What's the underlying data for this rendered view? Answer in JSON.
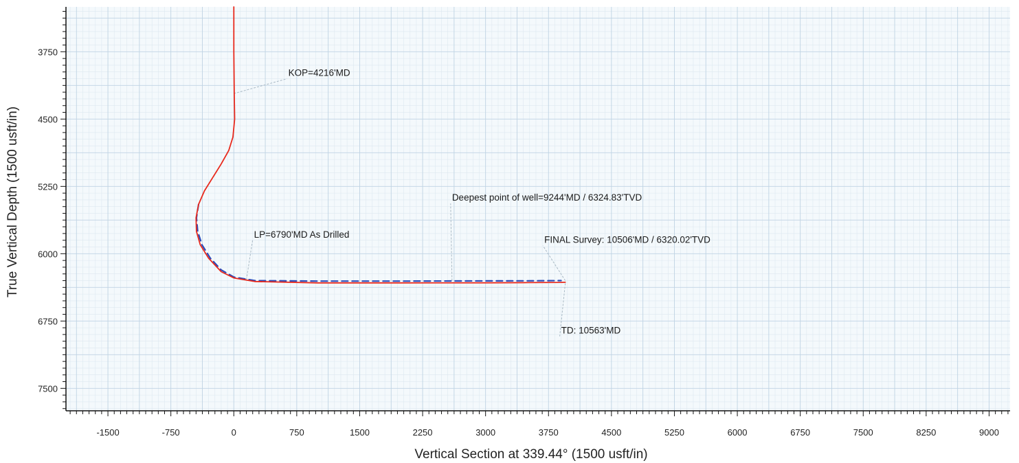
{
  "chart_data": {
    "type": "line",
    "xlabel": "Vertical Section at 339.44° (1500 usft/in)",
    "ylabel": "True Vertical Depth (1500 usft/in)",
    "xlim": [
      -2000,
      9250
    ],
    "ylim": [
      3250,
      7750
    ],
    "y_inverted": true,
    "x_ticks": [
      -1500,
      -750,
      0,
      750,
      1500,
      2250,
      3000,
      3750,
      4500,
      5250,
      6000,
      6750,
      7500,
      8250,
      9000
    ],
    "y_ticks": [
      3750,
      4500,
      5250,
      6000,
      6750,
      7500
    ],
    "grid": true,
    "colors": {
      "actual": "#e8291c",
      "plan": "#2b4ab8",
      "grid_major": "#bfd3e3",
      "grid_minor": "#dde8f0",
      "background": "#f4f9fc",
      "leader": "#a8b8c4"
    },
    "series": [
      {
        "style": "solid",
        "color": "#e8291c",
        "x": [
          0,
          0,
          5,
          10,
          -10,
          -60,
          -150,
          -250,
          -350,
          -420,
          -450,
          -445,
          -400,
          -300,
          -150,
          0,
          250,
          1000,
          2000,
          3000,
          3500,
          3900,
          3950
        ],
        "y": [
          3250,
          3750,
          4216,
          4500,
          4700,
          4850,
          5000,
          5150,
          5300,
          5450,
          5600,
          5750,
          5900,
          6050,
          6200,
          6270,
          6310,
          6325,
          6325,
          6324,
          6322,
          6320,
          6318
        ]
      },
      {
        "style": "dashed",
        "color": "#2b4ab8",
        "x": [
          -420,
          -445,
          -430,
          -380,
          -280,
          -150,
          0,
          250,
          1000,
          2000,
          3000,
          3500,
          3900
        ],
        "y": [
          5450,
          5600,
          5750,
          5900,
          6050,
          6180,
          6260,
          6300,
          6305,
          6305,
          6303,
          6302,
          6300
        ]
      }
    ],
    "annotations": [
      {
        "text": "KOP=4216'MD",
        "x": 0,
        "y": 4216,
        "text_x": 650,
        "text_y": 4020
      },
      {
        "text": "LP=6790'MD As Drilled",
        "x": 150,
        "y": 6290,
        "text_x": 240,
        "text_y": 5820
      },
      {
        "text": "Deepest point of well=9244'MD / 6324.83'TVD",
        "x": 2600,
        "y": 6300,
        "text_x": 2600,
        "text_y": 5410
      },
      {
        "text": "FINAL Survey: 10506'MD / 6320.02'TVD",
        "x": 3950,
        "y": 6300,
        "text_x": 3700,
        "text_y": 5880
      },
      {
        "text": "TD: 10563'MD",
        "x": 3950,
        "y": 6330,
        "text_x": 3900,
        "text_y": 6890
      }
    ]
  }
}
